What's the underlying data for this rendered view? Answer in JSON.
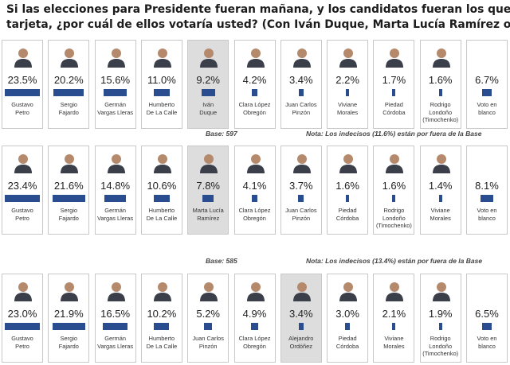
{
  "title": {
    "line1": "Si las elecciones para Presidente fueran mañana, y los candidatos fueran los que aparecen en esta",
    "line2": "tarjeta, ¿por cuál de ellos votaría usted? (Con Iván Duque, Marta Lucía Ramírez o Alejandro Ordóñez)"
  },
  "chart_data": [
    {
      "type": "bar",
      "categories": [
        "Gustavo Petro",
        "Sergio Fajardo",
        "Germán Vargas Lleras",
        "Humberto De La Calle",
        "Iván Duque",
        "Clara López Obregón",
        "Juan Carlos Pinzón",
        "Viviane Morales",
        "Piedad Córdoba",
        "Rodrigo Londoño (Timochenko)",
        "Voto en blanco"
      ],
      "labels": [
        "23.5%",
        "20.2%",
        "15.6%",
        "11.0%",
        "9.2%",
        "4.2%",
        "3.4%",
        "2.2%",
        "1.7%",
        "1.6%",
        "6.7%"
      ],
      "values": [
        23.5,
        20.2,
        15.6,
        11.0,
        9.2,
        4.2,
        3.4,
        2.2,
        1.7,
        1.6,
        6.7
      ],
      "name_lines": [
        [
          "Gustavo",
          "Petro"
        ],
        [
          "Sergio",
          "Fajardo"
        ],
        [
          "Germán",
          "Vargas Lleras"
        ],
        [
          "Humberto",
          "De La Calle"
        ],
        [
          "Iván",
          "Duque"
        ],
        [
          "Clara López",
          "Obregón"
        ],
        [
          "Juan Carlos",
          "Pinzón"
        ],
        [
          "Viviane",
          "Morales"
        ],
        [
          "Piedad",
          "Córdoba"
        ],
        [
          "Rodrigo",
          "Londoño",
          "(Timochenko)"
        ],
        [
          "Voto en",
          "blanco"
        ]
      ],
      "highlight": "Iván Duque",
      "base": "Base: 597",
      "note": "Nota: Los indecisos (11.6%) están por fuera de la Base"
    },
    {
      "type": "bar",
      "categories": [
        "Gustavo Petro",
        "Sergio Fajardo",
        "Germán Vargas Lleras",
        "Humberto De La Calle",
        "Marta Lucía Ramírez",
        "Clara López Obregón",
        "Juan Carlos Pinzón",
        "Piedad Córdoba",
        "Rodrigo Londoño (Timochenko)",
        "Viviane Morales",
        "Voto en blanco"
      ],
      "labels": [
        "23.4%",
        "21.6%",
        "14.8%",
        "10.6%",
        "7.8%",
        "4.1%",
        "3.7%",
        "1.6%",
        "1.6%",
        "1.4%",
        "8.1%"
      ],
      "values": [
        23.4,
        21.6,
        14.8,
        10.6,
        7.8,
        4.1,
        3.7,
        1.6,
        1.6,
        1.4,
        8.1
      ],
      "name_lines": [
        [
          "Gustavo",
          "Petro"
        ],
        [
          "Sergio",
          "Fajardo"
        ],
        [
          "Germán",
          "Vargas Lleras"
        ],
        [
          "Humberto",
          "De La Calle"
        ],
        [
          "Marta Lucía",
          "Ramírez"
        ],
        [
          "Clara López",
          "Obregón"
        ],
        [
          "Juan Carlos",
          "Pinzón"
        ],
        [
          "Piedad",
          "Córdoba"
        ],
        [
          "Rodrigo",
          "Londoño",
          "(Timochenko)"
        ],
        [
          "Viviane",
          "Morales"
        ],
        [
          "Voto en",
          "blanco"
        ]
      ],
      "highlight": "Marta Lucía Ramírez",
      "base": "Base: 585",
      "note": "Nota: Los indecisos (13.4%) están por fuera de la Base"
    },
    {
      "type": "bar",
      "categories": [
        "Gustavo Petro",
        "Sergio Fajardo",
        "Germán Vargas Lleras",
        "Humberto De La Calle",
        "Juan Carlos Pinzón",
        "Clara López Obregón",
        "Alejandro Ordóñez",
        "Piedad Córdoba",
        "Viviane Morales",
        "Rodrigo Londoño (Timochenko)",
        "Voto en blanco"
      ],
      "labels": [
        "23.0%",
        "21.9%",
        "16.5%",
        "10.2%",
        "5.2%",
        "4.9%",
        "3.4%",
        "3.0%",
        "2.1%",
        "1.9%",
        "6.5%"
      ],
      "values": [
        23.0,
        21.9,
        16.5,
        10.2,
        5.2,
        4.9,
        3.4,
        3.0,
        2.1,
        1.9,
        6.5
      ],
      "name_lines": [
        [
          "Gustavo",
          "Petro"
        ],
        [
          "Sergio",
          "Fajardo"
        ],
        [
          "Germán",
          "Vargas Lleras"
        ],
        [
          "Humberto",
          "De La Calle"
        ],
        [
          "Juan Carlos",
          "Pinzón"
        ],
        [
          "Clara López",
          "Obregón"
        ],
        [
          "Alejandro",
          "Ordóñez"
        ],
        [
          "Piedad",
          "Córdoba"
        ],
        [
          "Viviane",
          "Morales"
        ],
        [
          "Rodrigo",
          "Londoño",
          "(Timochenko)"
        ],
        [
          "Voto en",
          "blanco"
        ]
      ],
      "highlight": "Alejandro Ordóñez"
    }
  ],
  "colors": {
    "bar": "#2a4d8f",
    "highlight_cell": "#dddddd",
    "border": "#c8c8c8"
  }
}
